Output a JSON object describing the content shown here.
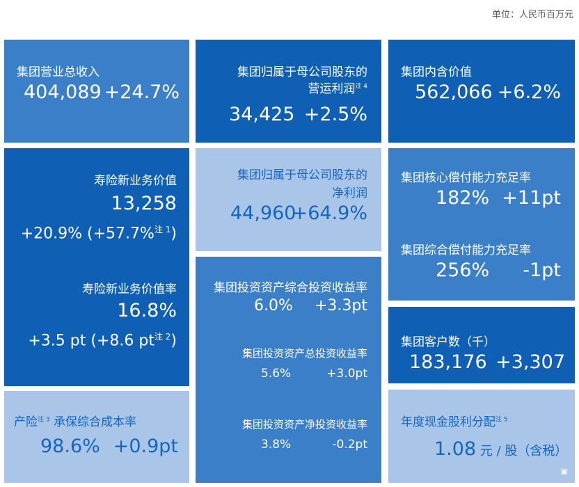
{
  "unit_label": "单位：人民币百万元",
  "tiles": {
    "revenue": {
      "label": "集团营业总收入",
      "value": "404,089",
      "change": "+24.7%"
    },
    "opat": {
      "label_line1": "集团归属于母公司股东的",
      "label_line2": "营运利润",
      "note": "注 4",
      "value": "34,425",
      "change": "+2.5%"
    },
    "ev": {
      "label": "集团内含价值",
      "value": "562,066",
      "change": "+6.2%"
    },
    "nbv": {
      "label": "寿险新业务价值",
      "value": "13,258",
      "change": "+20.9% (+57.7%",
      "note": "注 1",
      "close": ")",
      "margin_label": "寿险新业务价值率",
      "margin_value": "16.8%",
      "margin_change": "+3.5 pt  (+8.6 pt",
      "margin_note": "注 2",
      "margin_close": ")"
    },
    "net_profit": {
      "label_line1": "集团归属于母公司股东的",
      "label_line2": "净利润",
      "value": "44,960",
      "change": "+64.9%"
    },
    "solvency": {
      "core_label": "集团核心偿付能力充足率",
      "core_value": "182%",
      "core_change": "+11pt",
      "comp_label": "集团综合偿付能力充足率",
      "comp_value": "256%",
      "comp_change": "-1pt"
    },
    "investment": {
      "comp_label": "集团投资资产综合投资收益率",
      "comp_value": "6.0%",
      "comp_change": "+3.3pt",
      "total_label": "集团投资资产总投资收益率",
      "total_value": "5.6%",
      "total_change": "+3.0pt",
      "net_label": "集团投资资产净投资收益率",
      "net_value": "3.8%",
      "net_change": "-0.2pt"
    },
    "customers": {
      "label": "集团客户数（千）",
      "value": "183,176",
      "change": "+3,307"
    },
    "combined_ratio": {
      "label_a": "产险",
      "note": "注 3",
      "label_b": " 承保综合成本率",
      "value": "98.6%",
      "change": "+0.9pt"
    },
    "dividend": {
      "label": "年度现金股利分配",
      "note": "注 5",
      "value": "1.08",
      "unit": " 元 / 股（含税）"
    }
  }
}
